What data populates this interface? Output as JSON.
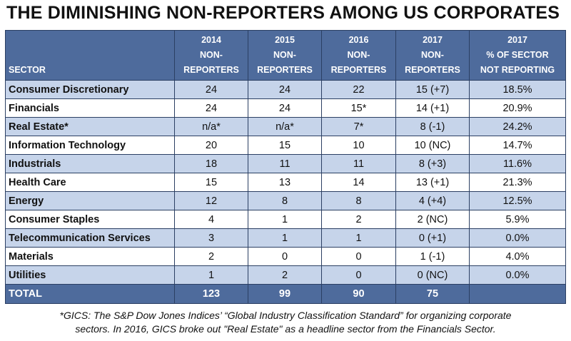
{
  "title": "THE DIMINISHING NON-REPORTERS AMONG US CORPORATES",
  "header": {
    "sector": "SECTOR",
    "columns": [
      {
        "line1": "2014",
        "line2": "NON-",
        "line3": "REPORTERS"
      },
      {
        "line1": "2015",
        "line2": "NON-",
        "line3": "REPORTERS"
      },
      {
        "line1": "2016",
        "line2": "NON-",
        "line3": "REPORTERS"
      },
      {
        "line1": "2017",
        "line2": "NON-",
        "line3": "REPORTERS"
      },
      {
        "line1": "2017",
        "line2": "% OF SECTOR",
        "line3": "NOT REPORTING"
      }
    ]
  },
  "rows": [
    {
      "sector": "Consumer Discretionary",
      "y2014": "24",
      "y2015": "24",
      "y2016": "22",
      "y2017": "15 (+7)",
      "pct": "18.5%"
    },
    {
      "sector": "Financials",
      "y2014": "24",
      "y2015": "24",
      "y2016": "15*",
      "y2017": "14 (+1)",
      "pct": "20.9%"
    },
    {
      "sector": "Real Estate*",
      "y2014": "n/a*",
      "y2015": "n/a*",
      "y2016": "7*",
      "y2017": "8 (-1)",
      "pct": "24.2%"
    },
    {
      "sector": "Information Technology",
      "y2014": "20",
      "y2015": "15",
      "y2016": "10",
      "y2017": "10 (NC)",
      "pct": "14.7%"
    },
    {
      "sector": "Industrials",
      "y2014": "18",
      "y2015": "11",
      "y2016": "11",
      "y2017": "8 (+3)",
      "pct": "11.6%"
    },
    {
      "sector": "Health Care",
      "y2014": "15",
      "y2015": "13",
      "y2016": "14",
      "y2017": "13 (+1)",
      "pct": "21.3%"
    },
    {
      "sector": "Energy",
      "y2014": "12",
      "y2015": "8",
      "y2016": "8",
      "y2017": "4 (+4)",
      "pct": "12.5%"
    },
    {
      "sector": "Consumer Staples",
      "y2014": "4",
      "y2015": "1",
      "y2016": "2",
      "y2017": "2 (NC)",
      "pct": "5.9%"
    },
    {
      "sector": "Telecommunication Services",
      "y2014": "3",
      "y2015": "1",
      "y2016": "1",
      "y2017": "0 (+1)",
      "pct": "0.0%"
    },
    {
      "sector": "Materials",
      "y2014": "2",
      "y2015": "0",
      "y2016": "0",
      "y2017": "1 (-1)",
      "pct": "4.0%"
    },
    {
      "sector": "Utilities",
      "y2014": "1",
      "y2015": "2",
      "y2016": "0",
      "y2017": "0 (NC)",
      "pct": "0.0%"
    }
  ],
  "total": {
    "label": "TOTAL",
    "y2014": "123",
    "y2015": "99",
    "y2016": "90",
    "y2017": "75",
    "pct": ""
  },
  "footnote": {
    "line1": "*GICS: The S&P Dow Jones Indices’ “Global Industry Classification Standard” for organizing corporate",
    "line2": "sectors. In 2016, GICS broke out \"Real Estate\" as a headline sector from the Financials Sector."
  },
  "colors": {
    "header_fill": "#4e6b9c",
    "band_fill": "#c6d4ea",
    "border": "#2b3f63"
  }
}
